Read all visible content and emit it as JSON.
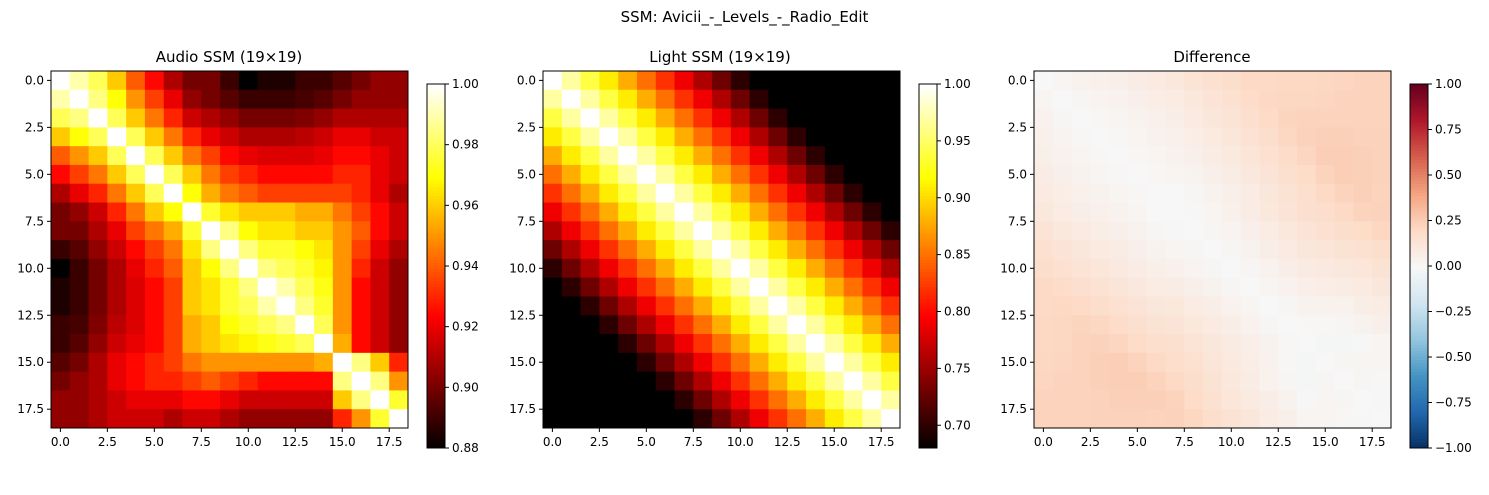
{
  "figure": {
    "suptitle": "SSM: Avicii_-_Levels_-_Radio_Edit"
  },
  "chart_data": [
    {
      "type": "heatmap",
      "title": "Audio SSM (19×19)",
      "size": 19,
      "colormap": "hot",
      "xlim": [
        -0.5,
        18.5
      ],
      "ylim": [
        18.5,
        -0.5
      ],
      "xticks": [
        "0.0",
        "2.5",
        "5.0",
        "7.5",
        "10.0",
        "12.5",
        "15.0",
        "17.5"
      ],
      "yticks": [
        "0.0",
        "2.5",
        "5.0",
        "7.5",
        "10.0",
        "12.5",
        "15.0",
        "17.5"
      ],
      "colorbar": {
        "min": 0.88,
        "max": 1.0,
        "ticks": [
          "0.88",
          "0.90",
          "0.92",
          "0.94",
          "0.96",
          "0.98",
          "1.00"
        ]
      },
      "values": [
        [
          1.0,
          0.99,
          0.98,
          0.96,
          0.94,
          0.925,
          0.91,
          0.9,
          0.9,
          0.89,
          0.88,
          0.885,
          0.885,
          0.89,
          0.89,
          0.895,
          0.9,
          0.905,
          0.905
        ],
        [
          0.99,
          1.0,
          0.985,
          0.97,
          0.95,
          0.935,
          0.92,
          0.905,
          0.9,
          0.895,
          0.89,
          0.89,
          0.89,
          0.892,
          0.895,
          0.9,
          0.905,
          0.905,
          0.905
        ],
        [
          0.98,
          0.985,
          1.0,
          0.98,
          0.96,
          0.945,
          0.93,
          0.915,
          0.91,
          0.905,
          0.9,
          0.9,
          0.9,
          0.902,
          0.905,
          0.91,
          0.91,
          0.91,
          0.91
        ],
        [
          0.96,
          0.97,
          0.98,
          1.0,
          0.98,
          0.96,
          0.945,
          0.93,
          0.92,
          0.915,
          0.91,
          0.91,
          0.91,
          0.912,
          0.915,
          0.92,
          0.92,
          0.915,
          0.915
        ],
        [
          0.94,
          0.95,
          0.96,
          0.98,
          1.0,
          0.98,
          0.96,
          0.945,
          0.935,
          0.925,
          0.92,
          0.918,
          0.918,
          0.918,
          0.92,
          0.925,
          0.925,
          0.92,
          0.915
        ],
        [
          0.925,
          0.935,
          0.945,
          0.96,
          0.98,
          1.0,
          0.98,
          0.96,
          0.945,
          0.935,
          0.93,
          0.925,
          0.925,
          0.925,
          0.925,
          0.93,
          0.93,
          0.92,
          0.915
        ],
        [
          0.91,
          0.92,
          0.93,
          0.945,
          0.96,
          0.98,
          1.0,
          0.97,
          0.955,
          0.945,
          0.94,
          0.935,
          0.935,
          0.935,
          0.935,
          0.935,
          0.93,
          0.92,
          0.91
        ],
        [
          0.9,
          0.905,
          0.915,
          0.93,
          0.945,
          0.96,
          0.97,
          1.0,
          0.975,
          0.965,
          0.96,
          0.96,
          0.96,
          0.955,
          0.955,
          0.945,
          0.935,
          0.925,
          0.915
        ],
        [
          0.9,
          0.9,
          0.91,
          0.92,
          0.935,
          0.945,
          0.955,
          0.975,
          1.0,
          0.985,
          0.97,
          0.965,
          0.965,
          0.96,
          0.96,
          0.95,
          0.94,
          0.925,
          0.915
        ],
        [
          0.89,
          0.895,
          0.905,
          0.915,
          0.925,
          0.935,
          0.945,
          0.965,
          0.985,
          1.0,
          0.985,
          0.975,
          0.975,
          0.97,
          0.965,
          0.95,
          0.935,
          0.92,
          0.91
        ],
        [
          0.88,
          0.89,
          0.9,
          0.91,
          0.92,
          0.93,
          0.94,
          0.96,
          0.97,
          0.985,
          1.0,
          0.985,
          0.98,
          0.975,
          0.968,
          0.95,
          0.93,
          0.915,
          0.905
        ],
        [
          0.885,
          0.89,
          0.9,
          0.91,
          0.918,
          0.925,
          0.935,
          0.96,
          0.965,
          0.975,
          0.985,
          1.0,
          0.99,
          0.98,
          0.972,
          0.95,
          0.925,
          0.915,
          0.905
        ],
        [
          0.885,
          0.89,
          0.9,
          0.91,
          0.918,
          0.925,
          0.935,
          0.96,
          0.965,
          0.975,
          0.98,
          0.99,
          1.0,
          0.985,
          0.975,
          0.95,
          0.925,
          0.915,
          0.905
        ],
        [
          0.89,
          0.892,
          0.902,
          0.912,
          0.918,
          0.925,
          0.935,
          0.955,
          0.96,
          0.97,
          0.975,
          0.98,
          0.985,
          1.0,
          0.98,
          0.95,
          0.925,
          0.915,
          0.905
        ],
        [
          0.89,
          0.895,
          0.905,
          0.915,
          0.92,
          0.925,
          0.935,
          0.955,
          0.96,
          0.965,
          0.968,
          0.972,
          0.975,
          0.98,
          1.0,
          0.955,
          0.925,
          0.915,
          0.905
        ],
        [
          0.895,
          0.9,
          0.91,
          0.92,
          0.925,
          0.93,
          0.935,
          0.945,
          0.95,
          0.95,
          0.95,
          0.95,
          0.95,
          0.95,
          0.955,
          1.0,
          0.985,
          0.96,
          0.93
        ],
        [
          0.9,
          0.905,
          0.91,
          0.92,
          0.925,
          0.93,
          0.93,
          0.935,
          0.94,
          0.935,
          0.93,
          0.925,
          0.925,
          0.925,
          0.925,
          0.985,
          1.0,
          0.985,
          0.95
        ],
        [
          0.905,
          0.905,
          0.91,
          0.915,
          0.92,
          0.92,
          0.92,
          0.925,
          0.925,
          0.92,
          0.915,
          0.915,
          0.915,
          0.915,
          0.915,
          0.96,
          0.985,
          1.0,
          0.975
        ],
        [
          0.905,
          0.905,
          0.91,
          0.915,
          0.915,
          0.915,
          0.91,
          0.915,
          0.915,
          0.91,
          0.905,
          0.905,
          0.905,
          0.905,
          0.905,
          0.93,
          0.95,
          0.975,
          1.0
        ]
      ]
    },
    {
      "type": "heatmap",
      "title": "Light SSM (19×19)",
      "size": 19,
      "colormap": "hot",
      "xlim": [
        -0.5,
        18.5
      ],
      "ylim": [
        18.5,
        -0.5
      ],
      "xticks": [
        "0.0",
        "2.5",
        "5.0",
        "7.5",
        "10.0",
        "12.5",
        "15.0",
        "17.5"
      ],
      "yticks": [
        "0.0",
        "2.5",
        "5.0",
        "7.5",
        "10.0",
        "12.5",
        "15.0",
        "17.5"
      ],
      "colorbar": {
        "min": 0.68,
        "max": 1.0,
        "ticks": [
          "0.70",
          "0.75",
          "0.80",
          "0.85",
          "0.90",
          "0.95",
          "1.00"
        ]
      },
      "diagonal_model": {
        "decay_per_step": 0.03,
        "floor": 0.68
      }
    },
    {
      "type": "heatmap",
      "title": "Difference",
      "size": 19,
      "colormap": "RdBu_r",
      "xlim": [
        -0.5,
        18.5
      ],
      "ylim": [
        18.5,
        -0.5
      ],
      "xticks": [
        "0.0",
        "2.5",
        "5.0",
        "7.5",
        "10.0",
        "12.5",
        "15.0",
        "17.5"
      ],
      "yticks": [
        "0.0",
        "2.5",
        "5.0",
        "7.5",
        "10.0",
        "12.5",
        "15.0",
        "17.5"
      ],
      "colorbar": {
        "min": -1.0,
        "max": 1.0,
        "ticks": [
          "−1.00",
          "−0.75",
          "−0.50",
          "−0.25",
          "0.00",
          "0.25",
          "0.50",
          "0.75",
          "1.00"
        ]
      },
      "derived_from": "Audio SSM minus Light SSM"
    }
  ]
}
